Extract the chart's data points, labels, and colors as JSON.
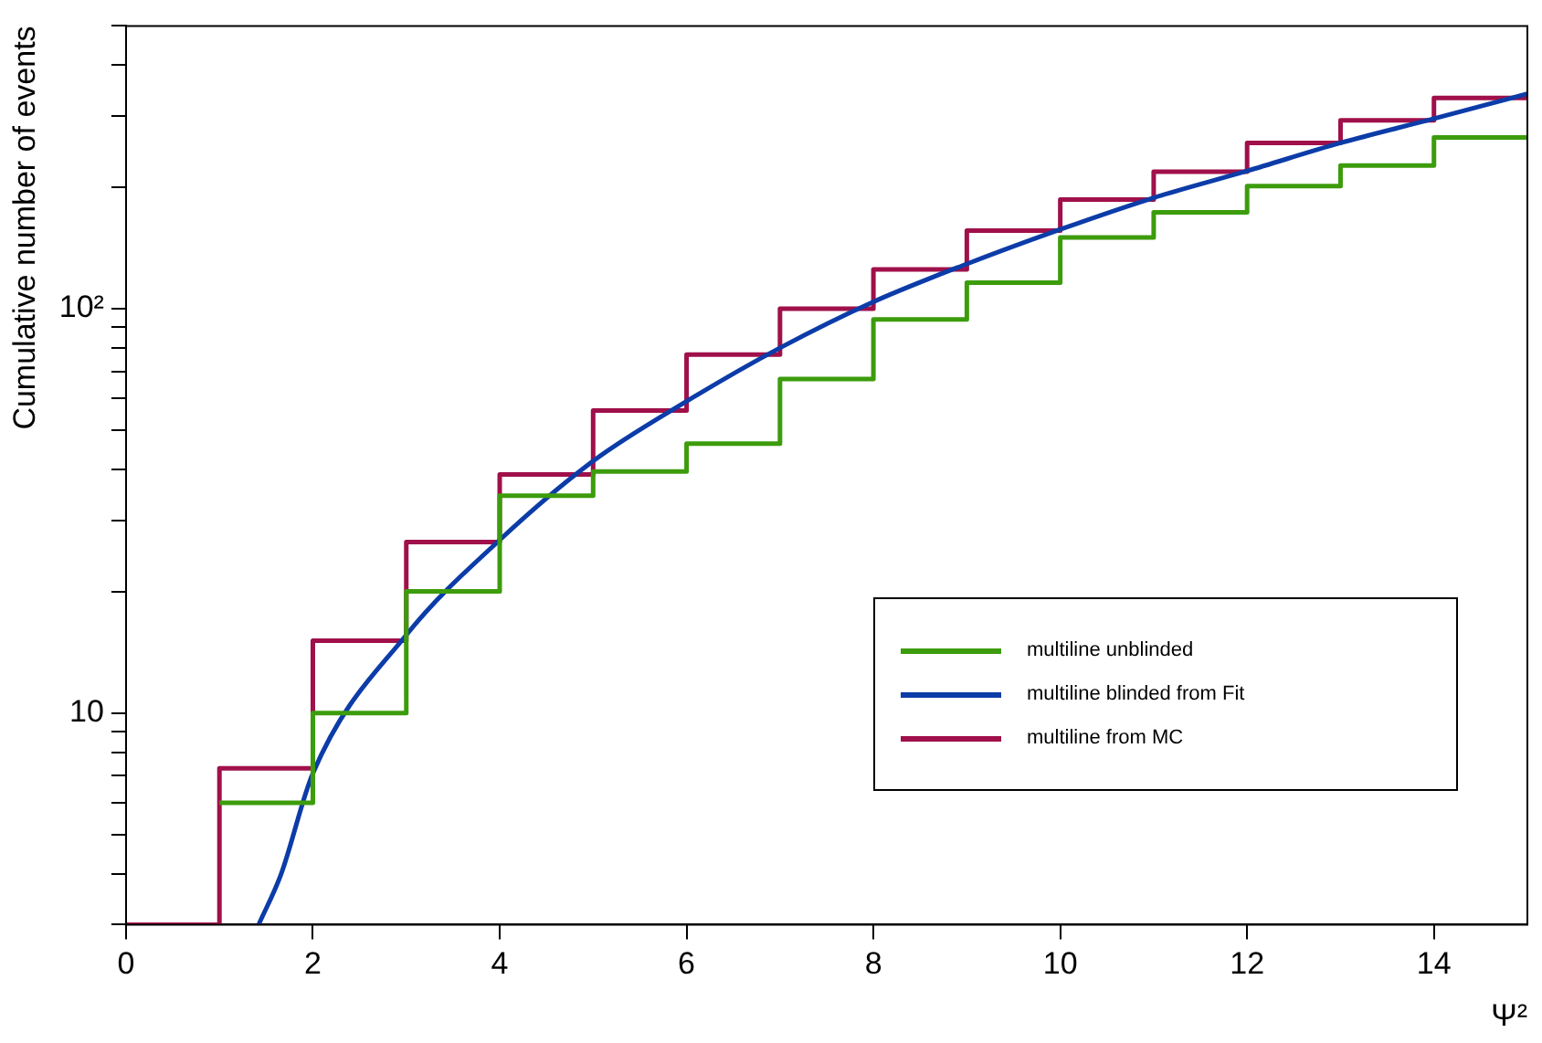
{
  "chart_data": {
    "type": "step",
    "xlabel": "Ψ²",
    "ylabel": "Cumulative number of events",
    "x": [
      0,
      1,
      2,
      3,
      4,
      5,
      6,
      7,
      8,
      9,
      10,
      11,
      12,
      13,
      14,
      15
    ],
    "series": [
      {
        "name": "multiline unblinded",
        "color": "#3c9c0c",
        "values": [
          null,
          6.0,
          10,
          20,
          34.5,
          39.6,
          46.4,
          67,
          94,
          116,
          150,
          173,
          201,
          226,
          265,
          265
        ]
      },
      {
        "name": "multiline blinded from Fit",
        "type": "line",
        "color": "#0c3ca8",
        "x": [
          1.42,
          1.66,
          2,
          3,
          4,
          5,
          6,
          7,
          8,
          9,
          10,
          11,
          12,
          13,
          14,
          15
        ],
        "values": [
          3,
          4.0,
          7.1,
          15.6,
          26.8,
          42,
          59,
          80,
          104,
          129,
          157,
          188,
          219,
          257,
          295,
          340
        ]
      },
      {
        "name": "multiline from MC",
        "color": "#a0104a",
        "values": [
          3,
          7.3,
          15.1,
          26.5,
          38.9,
          56,
          77,
          100,
          125,
          156,
          186,
          218,
          257,
          292,
          332,
          332
        ]
      }
    ],
    "log": "y",
    "xlim": [
      0,
      15
    ],
    "ylim": [
      3,
      500
    ],
    "xticks": [
      0,
      2,
      4,
      6,
      8,
      10,
      12,
      14
    ],
    "yticks": [
      {
        "value": 3,
        "label": null
      },
      {
        "value": 4,
        "label": null
      },
      {
        "value": 5,
        "label": null
      },
      {
        "value": 6,
        "label": null
      },
      {
        "value": 7,
        "label": null
      },
      {
        "value": 8,
        "label": null
      },
      {
        "value": 9,
        "label": null
      },
      10,
      {
        "value": 20,
        "label": null
      },
      {
        "value": 30,
        "label": null
      },
      {
        "value": 40,
        "label": null
      },
      {
        "value": 50,
        "label": null
      },
      {
        "value": 60,
        "label": null
      },
      {
        "value": 70,
        "label": null
      },
      {
        "value": 80,
        "label": null
      },
      {
        "value": 90,
        "label": null
      },
      {
        "value": 100,
        "label": "10²"
      },
      {
        "value": 200,
        "label": null
      },
      {
        "value": 300,
        "label": null
      },
      {
        "value": 400,
        "label": null
      },
      {
        "value": 500,
        "label": null
      }
    ],
    "grid": false,
    "legend": "bottom right"
  }
}
